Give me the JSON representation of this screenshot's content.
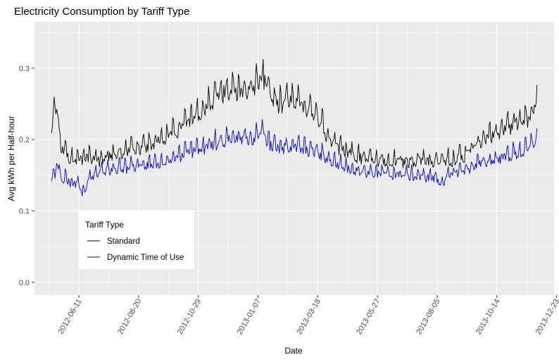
{
  "chart_data": {
    "type": "line",
    "title": "Electricity Consumption by Tariff Type",
    "xlabel": "Date",
    "ylabel": "Avg kWh per Half-hour",
    "x_range": [
      "2012-04-20",
      "2013-12-20"
    ],
    "ylim": [
      -0.018,
      0.365
    ],
    "y_ticks": [
      0.0,
      0.1,
      0.2,
      0.3
    ],
    "y_tick_labels": [
      "0.0",
      "0.1",
      "0.2",
      "0.3"
    ],
    "x_ticks": [
      "2012-06-11",
      "2012-08-20",
      "2012-10-29",
      "2013-01-07",
      "2013-03-18",
      "2013-05-27",
      "2013-08-05",
      "2013-10-14",
      "2013-12-23"
    ],
    "x_tick_labels": [
      "2012-06-11",
      "2012-08-20",
      "2012-10-29",
      "2013-01-07",
      "2013-03-18",
      "2013-05-27",
      "2013-08-05",
      "2013-10-14",
      "2013-12-23"
    ],
    "grid": true,
    "legend": {
      "title": "Tariff Type",
      "position": "bottom-left"
    },
    "series_start": "2012-05-10",
    "series_end": "2013-11-30",
    "series": [
      {
        "name": "Standard",
        "color": "#000000",
        "keypoints": [
          [
            "2012-05-10",
            0.205
          ],
          [
            "2012-05-13",
            0.24
          ],
          [
            "2012-05-17",
            0.245
          ],
          [
            "2012-05-20",
            0.19
          ],
          [
            "2012-05-27",
            0.18
          ],
          [
            "2012-06-05",
            0.172
          ],
          [
            "2012-06-20",
            0.176
          ],
          [
            "2012-07-05",
            0.172
          ],
          [
            "2012-07-20",
            0.18
          ],
          [
            "2012-08-05",
            0.185
          ],
          [
            "2012-08-20",
            0.19
          ],
          [
            "2012-09-05",
            0.195
          ],
          [
            "2012-09-20",
            0.205
          ],
          [
            "2012-10-05",
            0.215
          ],
          [
            "2012-10-20",
            0.228
          ],
          [
            "2012-11-05",
            0.245
          ],
          [
            "2012-11-20",
            0.262
          ],
          [
            "2012-12-01",
            0.272
          ],
          [
            "2012-12-15",
            0.27
          ],
          [
            "2012-12-25",
            0.268
          ],
          [
            "2013-01-05",
            0.28
          ],
          [
            "2013-01-13",
            0.29
          ],
          [
            "2013-01-20",
            0.268
          ],
          [
            "2013-02-01",
            0.252
          ],
          [
            "2013-02-15",
            0.258
          ],
          [
            "2013-03-01",
            0.248
          ],
          [
            "2013-03-15",
            0.238
          ],
          [
            "2013-03-25",
            0.22
          ],
          [
            "2013-04-01",
            0.198
          ],
          [
            "2013-04-20",
            0.185
          ],
          [
            "2013-05-10",
            0.175
          ],
          [
            "2013-06-01",
            0.172
          ],
          [
            "2013-06-20",
            0.17
          ],
          [
            "2013-07-10",
            0.172
          ],
          [
            "2013-08-01",
            0.17
          ],
          [
            "2013-08-20",
            0.172
          ],
          [
            "2013-09-05",
            0.178
          ],
          [
            "2013-09-20",
            0.192
          ],
          [
            "2013-10-05",
            0.205
          ],
          [
            "2013-10-20",
            0.215
          ],
          [
            "2013-11-05",
            0.225
          ],
          [
            "2013-11-20",
            0.232
          ],
          [
            "2013-11-30",
            0.258
          ]
        ]
      },
      {
        "name": "Dynamic Time of Use",
        "color": "#0000cd",
        "keypoints": [
          [
            "2012-05-10",
            0.148
          ],
          [
            "2012-05-13",
            0.145
          ],
          [
            "2012-05-17",
            0.17
          ],
          [
            "2012-05-20",
            0.15
          ],
          [
            "2012-06-01",
            0.142
          ],
          [
            "2012-06-11",
            0.138
          ],
          [
            "2012-06-15",
            0.125
          ],
          [
            "2012-06-25",
            0.15
          ],
          [
            "2012-07-10",
            0.158
          ],
          [
            "2012-07-25",
            0.16
          ],
          [
            "2012-08-10",
            0.162
          ],
          [
            "2012-08-25",
            0.165
          ],
          [
            "2012-09-10",
            0.168
          ],
          [
            "2012-09-25",
            0.172
          ],
          [
            "2012-10-10",
            0.18
          ],
          [
            "2012-10-25",
            0.186
          ],
          [
            "2012-11-10",
            0.192
          ],
          [
            "2012-11-25",
            0.2
          ],
          [
            "2012-12-10",
            0.205
          ],
          [
            "2012-12-25",
            0.2
          ],
          [
            "2013-01-05",
            0.205
          ],
          [
            "2013-01-10",
            0.218
          ],
          [
            "2013-01-18",
            0.196
          ],
          [
            "2013-02-01",
            0.19
          ],
          [
            "2013-02-15",
            0.193
          ],
          [
            "2013-03-01",
            0.188
          ],
          [
            "2013-03-15",
            0.185
          ],
          [
            "2013-04-01",
            0.172
          ],
          [
            "2013-04-20",
            0.162
          ],
          [
            "2013-05-10",
            0.156
          ],
          [
            "2013-06-01",
            0.153
          ],
          [
            "2013-06-20",
            0.152
          ],
          [
            "2013-07-10",
            0.15
          ],
          [
            "2013-08-01",
            0.148
          ],
          [
            "2013-08-10",
            0.14
          ],
          [
            "2013-08-25",
            0.155
          ],
          [
            "2013-09-10",
            0.16
          ],
          [
            "2013-09-25",
            0.168
          ],
          [
            "2013-10-10",
            0.172
          ],
          [
            "2013-10-25",
            0.178
          ],
          [
            "2013-11-10",
            0.183
          ],
          [
            "2013-11-20",
            0.188
          ],
          [
            "2013-11-30",
            0.205
          ]
        ]
      }
    ]
  }
}
